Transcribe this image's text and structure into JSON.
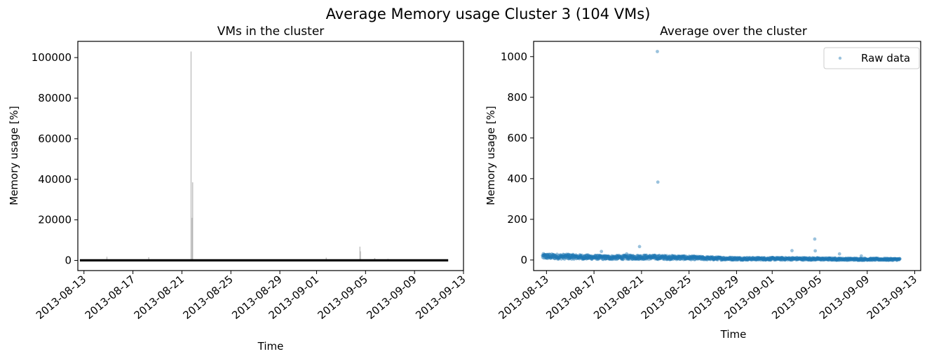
{
  "figure_title": "Average Memory usage Cluster 3 (104 VMs)",
  "chart_data": [
    {
      "type": "line",
      "title": "VMs in the cluster",
      "xlabel": "Time",
      "ylabel": "Memory usage [%]",
      "x_tick_labels": [
        "2013-08-13",
        "2013-08-17",
        "2013-08-21",
        "2013-08-25",
        "2013-08-29",
        "2013-09-01",
        "2013-09-05",
        "2013-09-09",
        "2013-09-13"
      ],
      "y_ticks": [
        0,
        20000,
        40000,
        60000,
        80000,
        100000
      ],
      "y_tick_labels": [
        "0",
        "20000",
        "40000",
        "60000",
        "80000",
        "100000"
      ],
      "xlim": [
        "2013-08-12T12:00",
        "2013-09-13"
      ],
      "ylim": [
        -5000,
        108000
      ],
      "series_color": "#a0a0a0",
      "average_color": "#000000",
      "x_start": "2013-08-12T16:00",
      "x_end": "2013-09-11T18:00",
      "average_value": 50,
      "spikes": [
        {
          "date": "2013-08-14T21:00",
          "value": 1800
        },
        {
          "date": "2013-08-18T07:00",
          "value": 1600
        },
        {
          "date": "2013-08-21T18:00",
          "value": 103000
        },
        {
          "date": "2013-08-21T21:00",
          "value": 38500
        },
        {
          "date": "2013-08-21T20:00",
          "value": 21000
        },
        {
          "date": "2013-09-01T19:00",
          "value": 1400
        },
        {
          "date": "2013-09-04T13:00",
          "value": 6800
        },
        {
          "date": "2013-09-04T14:00",
          "value": 4500
        },
        {
          "date": "2013-09-05T18:00",
          "value": 1200
        },
        {
          "date": "2013-09-06T20:00",
          "value": 800
        }
      ]
    },
    {
      "type": "scatter",
      "title": "Average over the cluster",
      "xlabel": "Time",
      "ylabel": "Memory usage [%]",
      "x_tick_labels": [
        "2013-08-13",
        "2013-08-17",
        "2013-08-21",
        "2013-08-25",
        "2013-08-29",
        "2013-09-01",
        "2013-09-05",
        "2013-09-09",
        "2013-09-13"
      ],
      "y_ticks": [
        0,
        200,
        400,
        600,
        800,
        1000
      ],
      "y_tick_labels": [
        "0",
        "200",
        "400",
        "600",
        "800",
        "1000"
      ],
      "xlim": [
        "2013-08-11T22:00",
        "2013-09-13T12:00"
      ],
      "ylim": [
        -52,
        1075
      ],
      "legend": "Raw data",
      "legend_position": "top-right",
      "color": "#1f77b4",
      "x_start": "2013-08-12T16:00",
      "x_end": "2013-09-11T18:00",
      "baseline_profile": [
        {
          "date": "2013-08-12T16:00",
          "value": 18
        },
        {
          "date": "2013-08-15T00:00",
          "value": 16
        },
        {
          "date": "2013-08-18T00:00",
          "value": 12
        },
        {
          "date": "2013-08-21T00:00",
          "value": 14
        },
        {
          "date": "2013-08-24T00:00",
          "value": 12
        },
        {
          "date": "2013-08-27T00:00",
          "value": 8
        },
        {
          "date": "2013-08-30T00:00",
          "value": 6
        },
        {
          "date": "2013-09-03T00:00",
          "value": 6
        },
        {
          "date": "2013-09-07T00:00",
          "value": 4
        },
        {
          "date": "2013-09-11T18:00",
          "value": 3
        }
      ],
      "outliers": [
        {
          "date": "2013-08-22T08:00",
          "value": 1025
        },
        {
          "date": "2013-08-22T09:00",
          "value": 383
        },
        {
          "date": "2013-09-04T14:00",
          "value": 103
        },
        {
          "date": "2013-09-04T15:00",
          "value": 45
        },
        {
          "date": "2013-08-20T20:00",
          "value": 66
        },
        {
          "date": "2013-08-17T15:00",
          "value": 42
        },
        {
          "date": "2013-09-02T16:00",
          "value": 46
        },
        {
          "date": "2013-08-14T20:00",
          "value": 28
        },
        {
          "date": "2013-08-19T18:00",
          "value": 30
        },
        {
          "date": "2013-09-06T16:00",
          "value": 30
        },
        {
          "date": "2013-09-08T12:00",
          "value": 20
        }
      ]
    }
  ]
}
